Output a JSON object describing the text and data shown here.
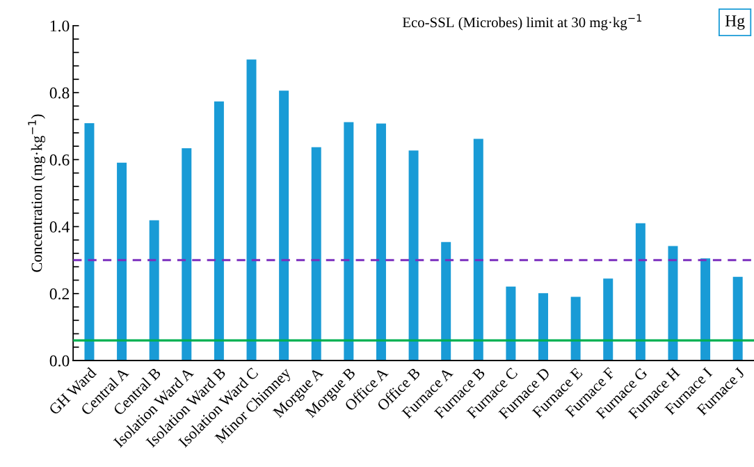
{
  "chart_data": {
    "type": "bar",
    "title": "Hg",
    "ylabel": "Concentration (mg·kg$^{−1}$)",
    "annotations": [
      "Eco-SSL (Microbes) limit at 30 mg·kg$^{−1}$"
    ],
    "categories": [
      "GH Ward",
      "Central A",
      "Central B",
      "Isolation Ward A",
      "Isolation Ward B",
      "Isolation Ward C",
      "Minor Chimney",
      "Morgue A",
      "Morgue B",
      "Office A",
      "Office B",
      "Furnace A",
      "Furnace B",
      "Furnace C",
      "Furnace D",
      "Furnace E",
      "Furnace F",
      "Furnace G",
      "Furnace H",
      "Furnace I",
      "Furnace J"
    ],
    "values": [
      0.709,
      0.591,
      0.419,
      0.634,
      0.774,
      0.899,
      0.806,
      0.637,
      0.712,
      0.708,
      0.627,
      0.354,
      0.662,
      0.221,
      0.201,
      0.19,
      0.245,
      0.41,
      0.342,
      0.305,
      0.25
    ],
    "color": "#199bd6",
    "ylim": [
      0,
      1.0
    ],
    "yticks": [
      {
        "value": 0,
        "label": "0.0"
      },
      {
        "value": 0.04,
        "label": null
      },
      {
        "value": 0.08,
        "label": null
      },
      {
        "value": 0.12,
        "label": null
      },
      {
        "value": 0.16,
        "label": null
      },
      {
        "value": 0.2,
        "label": "0.2"
      },
      {
        "value": 0.24,
        "label": null
      },
      {
        "value": 0.28,
        "label": null
      },
      {
        "value": 0.32,
        "label": null
      },
      {
        "value": 0.36,
        "label": null
      },
      {
        "value": 0.4,
        "label": "0.4"
      },
      {
        "value": 0.44,
        "label": null
      },
      {
        "value": 0.48,
        "label": null
      },
      {
        "value": 0.52,
        "label": null
      },
      {
        "value": 0.56,
        "label": null
      },
      {
        "value": 0.6,
        "label": "0.6"
      },
      {
        "value": 0.64,
        "label": null
      },
      {
        "value": 0.68,
        "label": null
      },
      {
        "value": 0.72,
        "label": null
      },
      {
        "value": 0.76,
        "label": null
      },
      {
        "value": 0.8,
        "label": "0.8"
      },
      {
        "value": 0.84,
        "label": null
      },
      {
        "value": 0.88,
        "label": null
      },
      {
        "value": 0.92,
        "label": null
      },
      {
        "value": 0.96,
        "label": null
      },
      {
        "value": 1.0,
        "label": "1.0"
      }
    ],
    "ref_lines": [
      {
        "axis": "y",
        "value": 0.3,
        "color": "#7b2fbe",
        "line_style": "dashed"
      },
      {
        "axis": "y",
        "value": 0.06,
        "color": "#00b050",
        "line_style": "solid"
      }
    ],
    "grid": false,
    "legend": false
  }
}
